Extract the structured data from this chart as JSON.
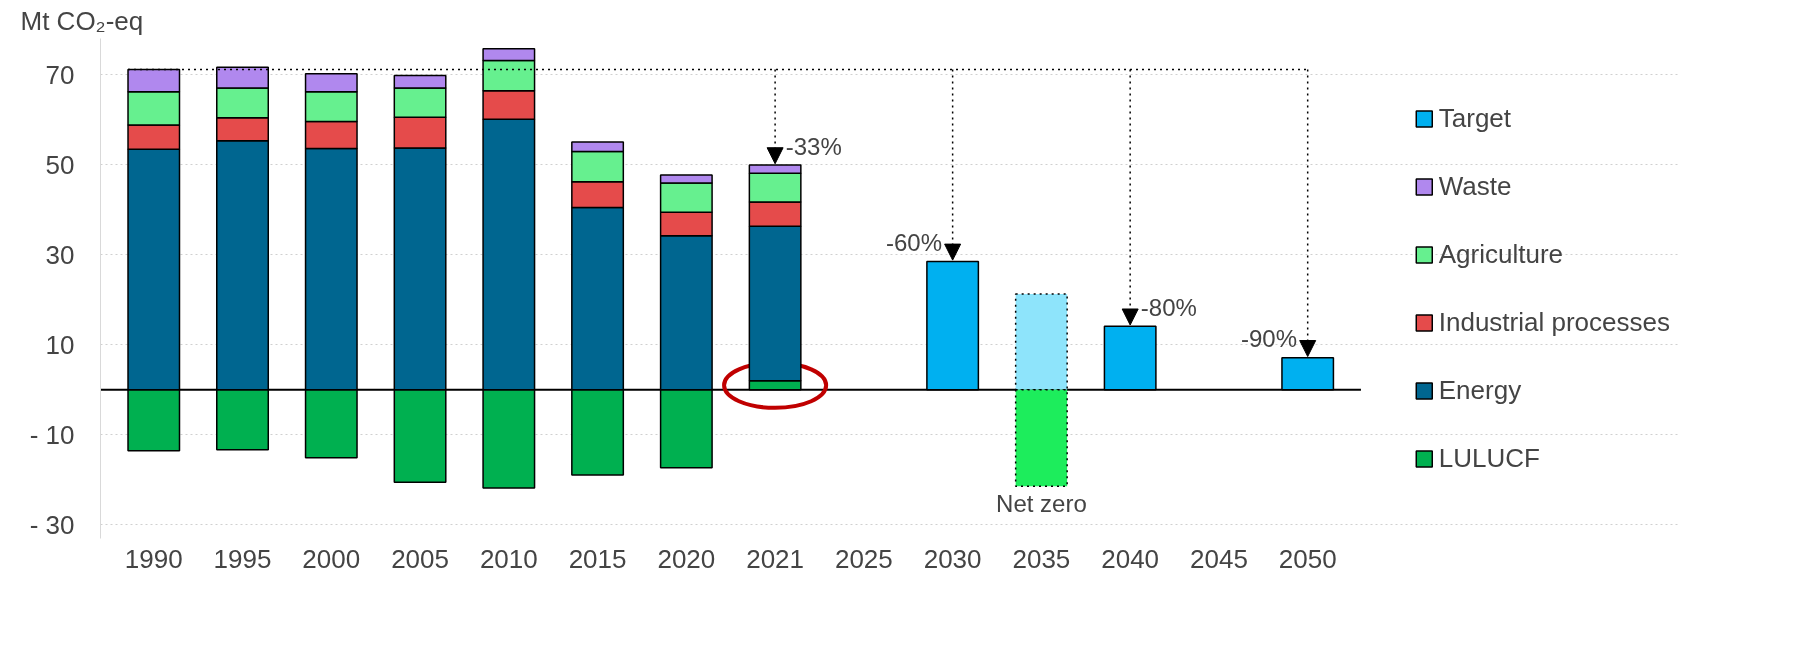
{
  "chart_data": {
    "type": "bar",
    "stacked": true,
    "ylabel": "Mt CO₂-eq",
    "categories": [
      "1990",
      "1995",
      "2000",
      "2005",
      "2010",
      "2015",
      "2020",
      "2021",
      "2025",
      "2030",
      "2035",
      "2040",
      "2045",
      "2050"
    ],
    "series": [
      {
        "name": "LULUCF",
        "color": "#00b050",
        "values": [
          -13.5,
          -13.3,
          -15.1,
          -20.5,
          -21.8,
          -18.9,
          -17.3,
          2.0,
          null,
          null,
          null,
          null,
          null,
          null
        ]
      },
      {
        "name": "Energy",
        "color": "#006690",
        "values": [
          53.4,
          55.3,
          53.6,
          53.7,
          60.1,
          40.5,
          34.2,
          34.3,
          null,
          null,
          null,
          null,
          null,
          null
        ]
      },
      {
        "name": "Industrial processes",
        "color": "#e54b4b",
        "values": [
          5.4,
          5.1,
          6.0,
          6.8,
          6.3,
          5.7,
          5.2,
          5.4,
          null,
          null,
          null,
          null,
          null,
          null
        ]
      },
      {
        "name": "Agriculture",
        "color": "#66f08f",
        "values": [
          7.4,
          6.6,
          6.6,
          6.5,
          6.7,
          6.7,
          6.5,
          6.4,
          null,
          null,
          null,
          null,
          null,
          null
        ]
      },
      {
        "name": "Waste",
        "color": "#b088ee",
        "values": [
          4.9,
          4.6,
          4.0,
          2.8,
          2.6,
          2.1,
          1.8,
          1.8,
          null,
          null,
          null,
          null,
          null,
          null
        ]
      },
      {
        "name": "Target",
        "color": "#00b0f0",
        "values": [
          null,
          null,
          null,
          null,
          null,
          null,
          null,
          null,
          null,
          28.5,
          null,
          14.1,
          null,
          7.1
        ]
      },
      {
        "color": "#8ee4fb",
        "line_style": "dotted",
        "values": [
          null,
          null,
          null,
          null,
          null,
          null,
          null,
          null,
          null,
          null,
          21.3,
          null,
          null,
          null
        ]
      },
      {
        "color": "#1ded5c",
        "line_style": "dotted",
        "values": [
          null,
          null,
          null,
          null,
          null,
          null,
          null,
          null,
          null,
          null,
          -21.4,
          null,
          null,
          null
        ]
      }
    ],
    "ylim": [
      -33,
      78
    ],
    "yticks": [
      70,
      50,
      30,
      10,
      {
        "value": -10,
        "label": "- 10"
      },
      {
        "value": -30,
        "label": "- 30"
      }
    ],
    "grid": "y",
    "legend": "right",
    "ref_lines": [
      {
        "axis": "y",
        "value": 71.1,
        "color": "#000000",
        "line_style": "dotted"
      }
    ],
    "annotations": [
      {
        "text": "-33%",
        "x": "2021",
        "y": 49.9
      },
      {
        "text": "-60%",
        "x": "2030",
        "y": 28.5
      },
      {
        "text": "-80%",
        "x": "2040",
        "y": 14.1
      },
      {
        "text": "-90%",
        "x": "2050",
        "y": 7.1
      },
      {
        "text": "Net zero",
        "x": "2035",
        "y": -21.4
      }
    ]
  }
}
